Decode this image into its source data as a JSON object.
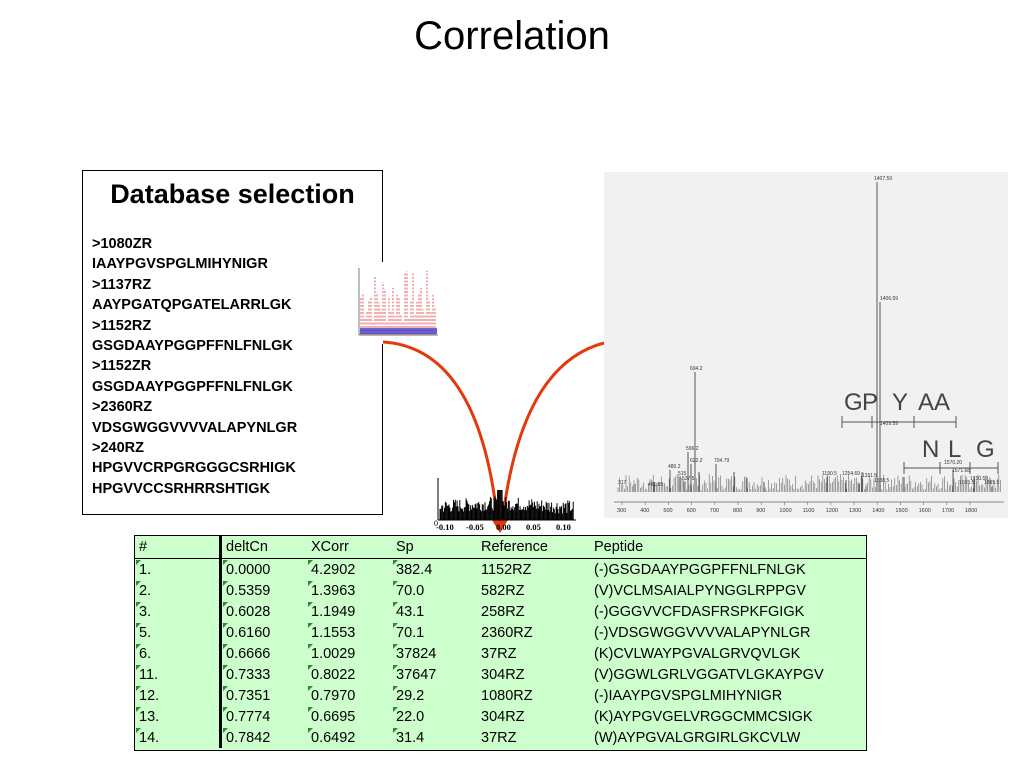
{
  "slide": {
    "title": "Correlation"
  },
  "database": {
    "heading": "Database selection",
    "lines": [
      ">1080ZR",
      "IAAYPGVSPGLMIHYNIGR",
      ">1137RZ",
      "AAYPGATQPGATELARRLGK",
      ">1152RZ",
      "GSGDAAYPGGPFFNLFNLGK",
      ">1152ZR",
      "GSGDAAYPGGPFFNLFNLGK",
      ">2360RZ",
      "VDSGWGGVVVVALAPYNLGR",
      ">240RZ",
      "HPGVVCRPGRGGGCSRHIGK",
      "HPGVVCCSRHRRSHTIGK"
    ]
  },
  "spectrum": {
    "peak_labels": [
      "1407.59",
      "1406.59",
      "694.2",
      "1409.59",
      "596.2",
      "622.2",
      "704.79",
      "480.2",
      "515",
      "537.5",
      "317",
      "461.85",
      "1190.5",
      "1254.69",
      "1311.5",
      "1338.5",
      "1570.20",
      "1571.68",
      "1710.59",
      "1665.5",
      "1865.5"
    ],
    "sequence_top": [
      "G",
      "P",
      "Y",
      "A",
      "A"
    ],
    "sequence_bottom": [
      "N",
      "L",
      "G"
    ],
    "x_ticks": [
      "300",
      "400",
      "500",
      "600",
      "700",
      "800",
      "900",
      "1000",
      "1100",
      "1200",
      "1300",
      "1400",
      "1500",
      "1600",
      "1700",
      "1800"
    ]
  },
  "correlation_plot": {
    "x_ticks": [
      "-0.10",
      "-0.05",
      "0.00",
      "0.05",
      "0.10"
    ],
    "y_zero": "0"
  },
  "results": {
    "columns": [
      "#",
      "deltCn",
      "XCorr",
      "Sp",
      "Reference",
      "Peptide"
    ],
    "rows": [
      [
        "1.",
        "0.0000",
        "4.2902",
        "382.4",
        "1152RZ",
        "(-)GSGDAAYPGGPFFNLFNLGK"
      ],
      [
        "2.",
        "0.5359",
        "1.3963",
        "70.0",
        "582RZ",
        "(V)VCLMSAIALPYNGGLRPPGV"
      ],
      [
        "3.",
        "0.6028",
        "1.1949",
        "43.1",
        "258RZ",
        "(-)GGGVVCFDASFRSPKFGIGK"
      ],
      [
        "5.",
        "0.6160",
        "1.1553",
        "70.1",
        "2360RZ",
        "(-)VDSGWGGVVVVALAPYNLGR"
      ],
      [
        "6.",
        "0.6666",
        "1.0029",
        "37824",
        "37RZ",
        "(K)CVLWAYPGVALGRVQVLGK"
      ],
      [
        "11.",
        "0.7333",
        "0.8022",
        "37647",
        "304RZ",
        "(V)GGWLGRLVGGATVLGKAYPGV"
      ],
      [
        "12.",
        "0.7351",
        "0.7970",
        "29.2",
        "1080RZ",
        "(-)IAAYPGVSPGLMIHYNIGR"
      ],
      [
        "13.",
        "0.7774",
        "0.6695",
        "22.0",
        "304RZ",
        "(K)AYPGVGELVRGGCMMCSIGK"
      ],
      [
        "14.",
        "0.7842",
        "0.6492",
        "31.4",
        "37RZ",
        "(W)AYPGVALGRGIRLGKCVLW"
      ]
    ]
  }
}
